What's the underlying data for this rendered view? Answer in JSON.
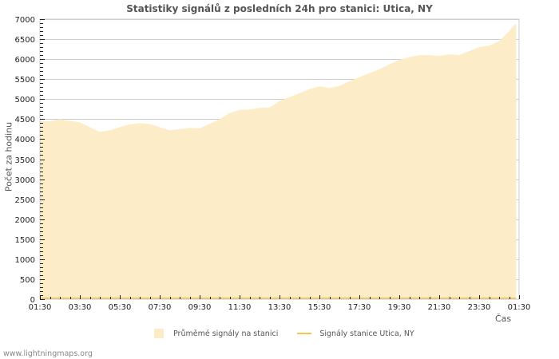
{
  "title": "Statistiky signálů z posledních 24h pro stanici: Utica, NY",
  "footer": "www.lightningmaps.org",
  "legend": {
    "area_label": "Průměmé signály na stanici",
    "line_label": "Signály stanice Utica, NY"
  },
  "colors": {
    "area": "#fdecc8",
    "line": "#f2c94c",
    "grid": "#cccccc",
    "text": "#555555"
  },
  "chart_data": {
    "type": "area",
    "title": "Statistiky signálů z posledních 24h pro stanici: Utica, NY",
    "xlabel": "Čas",
    "ylabel": "Počet za hodinu",
    "ylim": [
      0,
      7000
    ],
    "yticks": [
      0,
      500,
      1000,
      1500,
      2000,
      2500,
      3000,
      3500,
      4000,
      4500,
      5000,
      5500,
      6000,
      6500,
      7000
    ],
    "xticks": [
      "01:30",
      "03:30",
      "05:30",
      "07:30",
      "09:30",
      "11:30",
      "13:30",
      "15:30",
      "17:30",
      "19:30",
      "21:30",
      "23:30",
      "01:30"
    ],
    "grid": true,
    "legend_position": "bottom",
    "series": [
      {
        "name": "Průměmé signály na stanici",
        "kind": "area",
        "x_hours": [
          0,
          0.5,
          1,
          1.5,
          2,
          2.5,
          3,
          3.5,
          4,
          4.5,
          5,
          5.5,
          6,
          6.5,
          7,
          7.5,
          8,
          8.5,
          9,
          9.5,
          10,
          10.5,
          11,
          11.5,
          12,
          12.5,
          13,
          13.5,
          14,
          14.5,
          15,
          15.5,
          16,
          16.5,
          17,
          17.5,
          18,
          18.5,
          19,
          19.5,
          20,
          20.5,
          21,
          21.5,
          22,
          22.5,
          23,
          23.5,
          23.85
        ],
        "values": [
          4450,
          4450,
          4500,
          4460,
          4420,
          4300,
          4180,
          4220,
          4300,
          4370,
          4400,
          4380,
          4300,
          4220,
          4250,
          4280,
          4270,
          4380,
          4500,
          4650,
          4730,
          4740,
          4780,
          4790,
          4950,
          5050,
          5150,
          5250,
          5320,
          5280,
          5330,
          5450,
          5550,
          5650,
          5750,
          5870,
          5980,
          6050,
          6100,
          6100,
          6080,
          6120,
          6100,
          6200,
          6300,
          6340,
          6450,
          6700,
          6900
        ]
      },
      {
        "name": "Signály stanice Utica, NY",
        "kind": "line",
        "values": [
          0
        ]
      }
    ]
  }
}
